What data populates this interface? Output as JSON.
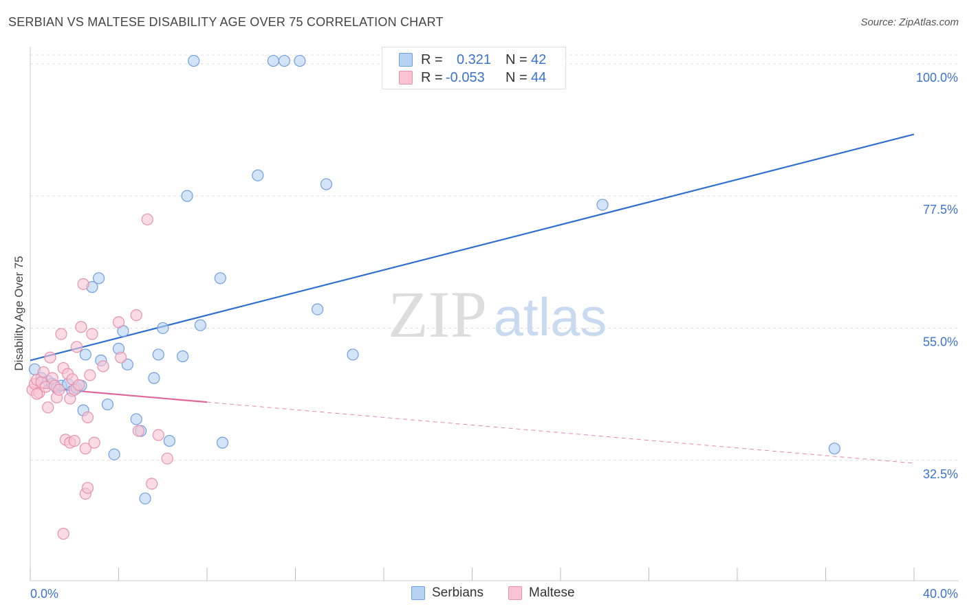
{
  "title": "SERBIAN VS MALTESE DISABILITY AGE OVER 75 CORRELATION CHART",
  "source": "Source: ZipAtlas.com",
  "watermark": {
    "zip": "ZIP",
    "atlas": "atlas"
  },
  "colors": {
    "serbians_fill": "#b8d2f4",
    "serbians_stroke": "#6f9ee0",
    "serbians_line": "#2f6fcf",
    "maltese_fill": "#f8c4d4",
    "maltese_stroke": "#e890ae",
    "maltese_line": "#e0679a",
    "axis_label": "#3a73d0",
    "grid": "#dddddd"
  },
  "legend": {
    "rows": [
      {
        "r_label": "R =",
        "r_value": "0.321",
        "n_label": "N =",
        "n_value": "42"
      },
      {
        "r_label": "R =",
        "r_value": "-0.053",
        "n_label": "N =",
        "n_value": "44"
      }
    ]
  },
  "bottom_legend": {
    "serbians": "Serbians",
    "maltese": "Maltese"
  },
  "chart_data": {
    "type": "scatter",
    "title": "SERBIAN VS MALTESE DISABILITY AGE OVER 75 CORRELATION CHART",
    "xlabel": "",
    "ylabel": "Disability Age Over 75",
    "xlim": [
      0,
      40
    ],
    "ylim": [
      12,
      101.5
    ],
    "x_tick_labels": [
      "0.0%",
      "40.0%"
    ],
    "y_ticks": [
      32.5,
      55.0,
      77.5,
      100.0
    ],
    "y_tick_labels": [
      "32.5%",
      "55.0%",
      "77.5%",
      "100.0%"
    ],
    "grid": true,
    "legend_position": "top-center",
    "series": [
      {
        "name": "Serbians",
        "r": 0.321,
        "n": 42,
        "trend": {
          "x0": 0,
          "y0": 49.5,
          "x1": 40,
          "y1": 88.0,
          "solid_until": 40
        },
        "points": [
          [
            0.2,
            48.0
          ],
          [
            0.5,
            46.5
          ],
          [
            0.8,
            46.0
          ],
          [
            1.0,
            45.5
          ],
          [
            1.2,
            44.8
          ],
          [
            1.4,
            45.2
          ],
          [
            1.7,
            45.5
          ],
          [
            1.9,
            44.3
          ],
          [
            2.1,
            44.8
          ],
          [
            2.3,
            45.2
          ],
          [
            2.5,
            50.5
          ],
          [
            2.4,
            41.0
          ],
          [
            2.8,
            62.0
          ],
          [
            3.1,
            63.5
          ],
          [
            3.2,
            49.5
          ],
          [
            3.5,
            42.0
          ],
          [
            3.8,
            33.5
          ],
          [
            4.0,
            51.5
          ],
          [
            4.2,
            54.5
          ],
          [
            4.4,
            48.8
          ],
          [
            4.8,
            39.5
          ],
          [
            5.0,
            37.5
          ],
          [
            5.2,
            26.0
          ],
          [
            5.6,
            46.5
          ],
          [
            5.8,
            50.5
          ],
          [
            6.0,
            55.0
          ],
          [
            6.3,
            35.8
          ],
          [
            6.9,
            50.2
          ],
          [
            7.1,
            77.5
          ],
          [
            7.4,
            100.5
          ],
          [
            7.7,
            55.5
          ],
          [
            8.6,
            63.5
          ],
          [
            8.7,
            35.5
          ],
          [
            10.3,
            81.0
          ],
          [
            11.0,
            100.5
          ],
          [
            11.5,
            100.5
          ],
          [
            12.2,
            100.5
          ],
          [
            13.0,
            58.2
          ],
          [
            13.4,
            79.5
          ],
          [
            14.6,
            50.5
          ],
          [
            25.9,
            76.0
          ],
          [
            36.4,
            34.5
          ]
        ]
      },
      {
        "name": "Maltese",
        "r": -0.053,
        "n": 44,
        "trend": {
          "x0": 0,
          "y0": 45.0,
          "x1": 40,
          "y1": 32.0,
          "solid_until": 8
        },
        "points": [
          [
            0.1,
            44.5
          ],
          [
            0.2,
            45.5
          ],
          [
            0.3,
            46.2
          ],
          [
            0.4,
            44.0
          ],
          [
            0.5,
            45.8
          ],
          [
            0.6,
            47.5
          ],
          [
            0.7,
            45.0
          ],
          [
            0.8,
            41.5
          ],
          [
            0.9,
            50.0
          ],
          [
            1.0,
            46.5
          ],
          [
            1.1,
            45.2
          ],
          [
            1.2,
            43.2
          ],
          [
            1.3,
            44.5
          ],
          [
            1.4,
            54.0
          ],
          [
            1.5,
            48.2
          ],
          [
            1.6,
            36.0
          ],
          [
            1.7,
            47.2
          ],
          [
            1.8,
            43.0
          ],
          [
            1.5,
            20.0
          ],
          [
            1.8,
            35.5
          ],
          [
            1.9,
            46.3
          ],
          [
            2.0,
            44.5
          ],
          [
            2.1,
            51.8
          ],
          [
            2.0,
            35.8
          ],
          [
            2.2,
            45.3
          ],
          [
            2.3,
            55.2
          ],
          [
            2.4,
            62.5
          ],
          [
            2.5,
            26.8
          ],
          [
            2.5,
            34.5
          ],
          [
            2.6,
            27.8
          ],
          [
            2.6,
            39.8
          ],
          [
            2.7,
            47.0
          ],
          [
            2.8,
            54.0
          ],
          [
            2.9,
            35.5
          ],
          [
            3.3,
            48.5
          ],
          [
            4.0,
            56.0
          ],
          [
            4.1,
            50.0
          ],
          [
            4.8,
            57.2
          ],
          [
            4.9,
            37.5
          ],
          [
            5.3,
            73.5
          ],
          [
            5.5,
            28.5
          ],
          [
            5.8,
            36.8
          ],
          [
            6.2,
            32.8
          ],
          [
            0.3,
            43.8
          ]
        ]
      }
    ]
  }
}
